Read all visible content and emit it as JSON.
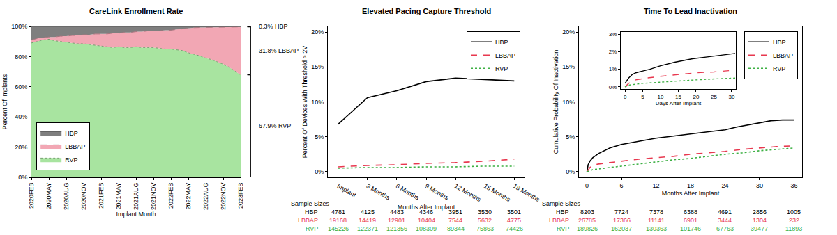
{
  "chart_data": [
    {
      "type": "area",
      "stacked": true,
      "title": "CareLink Enrollment Rate",
      "x_label": "Implant Month",
      "y_label": "Percent Of Implants",
      "categories": [
        "2020FEB",
        null,
        null,
        "2020MAY",
        null,
        null,
        "2020AUG",
        null,
        null,
        "2020NOV",
        null,
        null,
        "2021FEB",
        null,
        null,
        "2021MAY",
        null,
        null,
        "2021AUG",
        null,
        null,
        "2021NOV",
        null,
        null,
        "2022FEB",
        null,
        null,
        "2022MAY",
        null,
        null,
        "2022AUG",
        null,
        null,
        "2022NOV",
        null,
        null,
        "2023FEB"
      ],
      "ylim": [
        0,
        100
      ],
      "yticks": [
        {
          "value": 0,
          "label": "0%"
        },
        {
          "value": 20,
          "label": "20%"
        },
        {
          "value": 40,
          "label": "40%"
        },
        {
          "value": 60,
          "label": "60%"
        },
        {
          "value": 80,
          "label": "80%"
        },
        {
          "value": 100,
          "label": "100%"
        }
      ],
      "grid": false,
      "legend": "bottom-left",
      "series": [
        {
          "name": "RVP",
          "color": "#a8e4a0",
          "line_style": "dot",
          "end_label": "67.9% RVP",
          "values": [
            89,
            90,
            91,
            91.5,
            90.5,
            90,
            89.5,
            89,
            88.5,
            88.5,
            88,
            87.5,
            87,
            86.5,
            86,
            86.5,
            86,
            86,
            86.5,
            86,
            86,
            86,
            85.5,
            85,
            85,
            84.5,
            84,
            82.5,
            81.5,
            80.5,
            79,
            78,
            76.5,
            75,
            73,
            70.5,
            67.9
          ]
        },
        {
          "name": "LBBAP",
          "color": "#f2a7b4",
          "line_style": "dash",
          "end_label": "31.8% LBBAP",
          "values": [
            2,
            2,
            1.5,
            1.5,
            2.5,
            3.5,
            4,
            5,
            5.5,
            6,
            6.5,
            7.5,
            8,
            8.5,
            9.5,
            9,
            10,
            10,
            10,
            10.5,
            11,
            11,
            11.5,
            12.5,
            12.5,
            13.5,
            14.5,
            16.5,
            17.7,
            18.8,
            20.4,
            21.5,
            23,
            24.6,
            26.6,
            29.2,
            31.8
          ]
        },
        {
          "name": "HBP",
          "color": "#7f7f7f",
          "line_style": "solid",
          "end_label": "0.3% HBP",
          "values": [
            9,
            8,
            7.5,
            7,
            7,
            6.5,
            6.5,
            6,
            6,
            5.5,
            5.5,
            5,
            5,
            5,
            4.5,
            4.5,
            4,
            4,
            3.5,
            3.5,
            3,
            3,
            3,
            2.5,
            2.5,
            2,
            1.5,
            1,
            0.8,
            0.7,
            0.6,
            0.5,
            0.5,
            0.4,
            0.4,
            0.3,
            0.3
          ]
        }
      ]
    },
    {
      "type": "line",
      "title": "Elevated Pacing Capture Threshold",
      "x_label": "Months After Implant",
      "y_label": "Percent Of Devices With Threshold > 2V",
      "categories": [
        "Implant",
        "3 Months",
        "6 Months",
        "9 Months",
        "12 Months",
        "15 Months",
        "18 Months"
      ],
      "ylim": [
        -0.8,
        20.8
      ],
      "yticks": [
        {
          "value": 0,
          "label": "0%"
        },
        {
          "value": 5,
          "label": "5%"
        },
        {
          "value": 10,
          "label": "10%"
        },
        {
          "value": 15,
          "label": "15%"
        },
        {
          "value": 20,
          "label": "20%"
        }
      ],
      "grid": false,
      "legend": "top-right",
      "series": [
        {
          "name": "HBP",
          "color": "#000000",
          "line_style": "solid",
          "values": [
            6.8,
            10.6,
            11.6,
            12.9,
            13.4,
            13.2,
            13.0
          ]
        },
        {
          "name": "LBBAP",
          "color": "#e8384f",
          "line_style": "dash",
          "values": [
            0.7,
            0.9,
            1.0,
            1.2,
            1.3,
            1.5,
            1.8
          ]
        },
        {
          "name": "RVP",
          "color": "#3cb043",
          "line_style": "dot",
          "values": [
            0.5,
            0.6,
            0.6,
            0.7,
            0.7,
            0.8,
            0.8
          ]
        }
      ],
      "sample_sizes": {
        "title": "Sample Sizes",
        "rows": [
          {
            "name": "HBP",
            "values": [
              4781,
              4125,
              4483,
              4346,
              3951,
              3530,
              3501
            ]
          },
          {
            "name": "LBBAP",
            "values": [
              19168,
              14419,
              12901,
              10404,
              7544,
              5632,
              4775
            ]
          },
          {
            "name": "RVP",
            "values": [
              145226,
              122371,
              121356,
              108309,
              89344,
              75863,
              74426
            ]
          }
        ]
      }
    },
    {
      "type": "line",
      "title": "Time To Lead Inactivation",
      "x_label": "Months After Implant",
      "y_label": "Cumulative Probability Of Inactivation",
      "xlim": [
        -1.4,
        37.4
      ],
      "xticks": [
        0,
        6,
        12,
        18,
        24,
        30,
        36
      ],
      "ylim": [
        -0.8,
        20.8
      ],
      "yticks": [
        {
          "value": 0,
          "label": "0%"
        },
        {
          "value": 5,
          "label": "5%"
        },
        {
          "value": 10,
          "label": "10%"
        },
        {
          "value": 15,
          "label": "15%"
        },
        {
          "value": 20,
          "label": "20%"
        }
      ],
      "grid": false,
      "legend": "top-right",
      "series": [
        {
          "name": "HBP",
          "color": "#000000",
          "line_style": "solid",
          "x": [
            0,
            0.2,
            0.5,
            1,
            2,
            3,
            4,
            6,
            8,
            10,
            12,
            15,
            18,
            21,
            24,
            26,
            28,
            30,
            32,
            34,
            36
          ],
          "values": [
            0,
            1.0,
            1.5,
            2.0,
            2.6,
            3.0,
            3.4,
            3.9,
            4.2,
            4.5,
            4.8,
            5.1,
            5.4,
            5.7,
            6.0,
            6.4,
            6.7,
            7.0,
            7.3,
            7.4,
            7.4
          ]
        },
        {
          "name": "LBBAP",
          "color": "#e8384f",
          "line_style": "dash",
          "x": [
            0,
            0.5,
            1,
            2,
            4,
            6,
            9,
            12,
            15,
            18,
            21,
            24,
            27,
            30,
            33,
            36
          ],
          "values": [
            0,
            0.6,
            0.9,
            1.1,
            1.3,
            1.5,
            1.8,
            2.0,
            2.2,
            2.5,
            2.7,
            2.9,
            3.2,
            3.4,
            3.6,
            3.7
          ]
        },
        {
          "name": "RVP",
          "color": "#3cb043",
          "line_style": "dot",
          "x": [
            0,
            1,
            3,
            6,
            9,
            12,
            15,
            18,
            21,
            24,
            27,
            30,
            33,
            36
          ],
          "values": [
            0,
            0.3,
            0.5,
            0.8,
            1.1,
            1.4,
            1.7,
            1.9,
            2.2,
            2.5,
            2.7,
            3.0,
            3.2,
            3.4
          ]
        }
      ],
      "inset": {
        "x_label": "Days After Implant",
        "xlim": [
          -1.2,
          31.2
        ],
        "xticks": [
          0,
          5,
          10,
          15,
          20,
          25,
          30
        ],
        "ylim": [
          -0.12,
          3.12
        ],
        "yticks": [
          {
            "value": 0,
            "label": "0%"
          },
          {
            "value": 1,
            "label": "1%"
          },
          {
            "value": 2,
            "label": "2%"
          },
          {
            "value": 3,
            "label": "3%"
          }
        ],
        "series": [
          {
            "name": "HBP",
            "x": [
              0,
              1,
              2,
              3,
              5,
              7,
              10,
              14,
              19,
              23,
              27,
              30,
              31
            ],
            "values": [
              0.2,
              0.5,
              0.7,
              0.8,
              0.9,
              1.0,
              1.2,
              1.4,
              1.6,
              1.7,
              1.8,
              1.9,
              1.9
            ]
          },
          {
            "name": "LBBAP",
            "x": [
              0,
              1,
              3,
              6,
              10,
              15,
              20,
              25,
              30,
              31
            ],
            "values": [
              0,
              0.2,
              0.4,
              0.5,
              0.6,
              0.7,
              0.8,
              0.85,
              0.95,
              0.95
            ]
          },
          {
            "name": "RVP",
            "x": [
              0,
              1,
              5,
              12,
              20,
              25,
              30,
              31
            ],
            "values": [
              0,
              0.1,
              0.2,
              0.3,
              0.4,
              0.45,
              0.5,
              0.5
            ]
          }
        ]
      },
      "sample_sizes": {
        "title": "Sample Sizes",
        "rows": [
          {
            "name": "HBP",
            "values": [
              8203,
              7724,
              7378,
              6388,
              4691,
              2856,
              1005
            ]
          },
          {
            "name": "LBBAP",
            "values": [
              26785,
              17366,
              11141,
              6901,
              3444,
              1304,
              232
            ]
          },
          {
            "name": "RVP",
            "values": [
              189826,
              162037,
              130363,
              101746,
              67763,
              39477,
              11893
            ]
          }
        ]
      }
    }
  ]
}
